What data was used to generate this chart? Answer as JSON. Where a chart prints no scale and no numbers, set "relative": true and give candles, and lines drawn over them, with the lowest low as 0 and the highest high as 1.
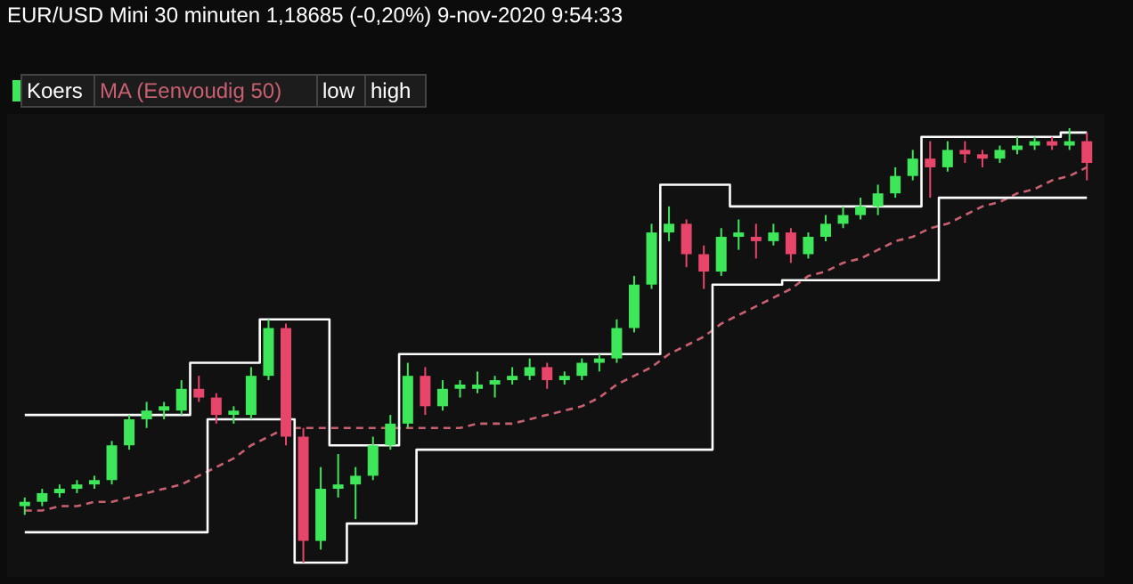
{
  "chart_data": {
    "type": "candlestick",
    "title": "EUR/USD Mini   30 minuten   1,18685 (-0,20%)   9-nov-2020 9:54:33",
    "relative": true,
    "legend": "top left",
    "categories": [
      null,
      null,
      null,
      null,
      null,
      null,
      null,
      null,
      null,
      null,
      null,
      null,
      null,
      null,
      null,
      null,
      null,
      null,
      null,
      null,
      null,
      null,
      null,
      null,
      null,
      null,
      null,
      null,
      null,
      null,
      null,
      null,
      null,
      null,
      null,
      null,
      null,
      null,
      null,
      null,
      null,
      null,
      null,
      null,
      null,
      null,
      null,
      null,
      null,
      null,
      null,
      null,
      null,
      null,
      null,
      null,
      null,
      null,
      null,
      null,
      null,
      null
    ],
    "series": [
      {
        "name": "Koers",
        "color": "#ffffff",
        "ohlc": [
          [
            0.13,
            0.15,
            0.11,
            0.14
          ],
          [
            0.14,
            0.17,
            0.13,
            0.16
          ],
          [
            0.16,
            0.18,
            0.15,
            0.17
          ],
          [
            0.17,
            0.19,
            0.16,
            0.18
          ],
          [
            0.18,
            0.2,
            0.17,
            0.19
          ],
          [
            0.19,
            0.28,
            0.18,
            0.27
          ],
          [
            0.27,
            0.34,
            0.26,
            0.33
          ],
          [
            0.33,
            0.37,
            0.31,
            0.35
          ],
          [
            0.35,
            0.37,
            0.33,
            0.36
          ],
          [
            0.35,
            0.42,
            0.34,
            0.4
          ],
          [
            0.4,
            0.43,
            0.37,
            0.38
          ],
          [
            0.38,
            0.39,
            0.32,
            0.34
          ],
          [
            0.34,
            0.36,
            0.32,
            0.35
          ],
          [
            0.34,
            0.45,
            0.33,
            0.43
          ],
          [
            0.43,
            0.56,
            0.42,
            0.54
          ],
          [
            0.54,
            0.55,
            0.27,
            0.29
          ],
          [
            0.29,
            0.31,
            0,
            0.05
          ],
          [
            0.05,
            0.22,
            0.03,
            0.17
          ],
          [
            0.17,
            0.25,
            0.15,
            0.18
          ],
          [
            0.18,
            0.22,
            0.1,
            0.2
          ],
          [
            0.2,
            0.29,
            0.19,
            0.27
          ],
          [
            0.27,
            0.34,
            0.26,
            0.32
          ],
          [
            0.32,
            0.46,
            0.31,
            0.43
          ],
          [
            0.43,
            0.45,
            0.34,
            0.36
          ],
          [
            0.36,
            0.42,
            0.35,
            0.4
          ],
          [
            0.4,
            0.42,
            0.38,
            0.41
          ],
          [
            0.4,
            0.44,
            0.39,
            0.41
          ],
          [
            0.41,
            0.43,
            0.38,
            0.42
          ],
          [
            0.42,
            0.45,
            0.41,
            0.43
          ],
          [
            0.43,
            0.47,
            0.42,
            0.45
          ],
          [
            0.45,
            0.46,
            0.4,
            0.42
          ],
          [
            0.42,
            0.44,
            0.41,
            0.43
          ],
          [
            0.43,
            0.47,
            0.42,
            0.46
          ],
          [
            0.46,
            0.48,
            0.44,
            0.47
          ],
          [
            0.47,
            0.56,
            0.46,
            0.54
          ],
          [
            0.54,
            0.66,
            0.53,
            0.64
          ],
          [
            0.64,
            0.78,
            0.63,
            0.76
          ],
          [
            0.76,
            0.82,
            0.74,
            0.78
          ],
          [
            0.78,
            0.79,
            0.68,
            0.71
          ],
          [
            0.71,
            0.73,
            0.63,
            0.67
          ],
          [
            0.67,
            0.77,
            0.66,
            0.75
          ],
          [
            0.75,
            0.79,
            0.72,
            0.76
          ],
          [
            0.75,
            0.78,
            0.7,
            0.74
          ],
          [
            0.74,
            0.78,
            0.73,
            0.76
          ],
          [
            0.76,
            0.77,
            0.69,
            0.71
          ],
          [
            0.71,
            0.76,
            0.7,
            0.75
          ],
          [
            0.75,
            0.8,
            0.74,
            0.78
          ],
          [
            0.78,
            0.82,
            0.77,
            0.8
          ],
          [
            0.8,
            0.84,
            0.79,
            0.82
          ],
          [
            0.82,
            0.87,
            0.8,
            0.85
          ],
          [
            0.85,
            0.91,
            0.84,
            0.89
          ],
          [
            0.89,
            0.95,
            0.88,
            0.93
          ],
          [
            0.93,
            0.97,
            0.84,
            0.91
          ],
          [
            0.91,
            0.97,
            0.9,
            0.95
          ],
          [
            0.95,
            0.97,
            0.92,
            0.94
          ],
          [
            0.94,
            0.95,
            0.91,
            0.93
          ],
          [
            0.93,
            0.96,
            0.92,
            0.95
          ],
          [
            0.95,
            0.98,
            0.94,
            0.96
          ],
          [
            0.96,
            0.98,
            0.95,
            0.97
          ],
          [
            0.97,
            0.98,
            0.95,
            0.96
          ],
          [
            0.96,
            1.0,
            0.95,
            0.97
          ],
          [
            0.97,
            0.99,
            0.88,
            0.92
          ]
        ],
        "colors": [
          "#3ee65a",
          "#3ee65a",
          "#3ee65a",
          "#3ee65a",
          "#3ee65a",
          "#3ee65a",
          "#3ee65a",
          "#3ee65a",
          "#3ee65a",
          "#3ee65a",
          "#e8456a",
          "#e8456a",
          "#3ee65a",
          "#3ee65a",
          "#3ee65a",
          "#e8456a",
          "#e8456a",
          "#3ee65a",
          "#3ee65a",
          "#3ee65a",
          "#3ee65a",
          "#3ee65a",
          "#3ee65a",
          "#e8456a",
          "#3ee65a",
          "#3ee65a",
          "#3ee65a",
          "#3ee65a",
          "#3ee65a",
          "#3ee65a",
          "#e8456a",
          "#3ee65a",
          "#3ee65a",
          "#3ee65a",
          "#3ee65a",
          "#3ee65a",
          "#3ee65a",
          "#3ee65a",
          "#e8456a",
          "#e8456a",
          "#3ee65a",
          "#3ee65a",
          "#e8456a",
          "#3ee65a",
          "#e8456a",
          "#3ee65a",
          "#3ee65a",
          "#3ee65a",
          "#3ee65a",
          "#3ee65a",
          "#3ee65a",
          "#3ee65a",
          "#e8456a",
          "#3ee65a",
          "#e8456a",
          "#e8456a",
          "#3ee65a",
          "#3ee65a",
          "#3ee65a",
          "#e8456a",
          "#3ee65a",
          "#e8456a"
        ]
      },
      {
        "name": "MA (Eenvoudig 50)",
        "type": "line",
        "line_style": "dashed",
        "color": "#c86070",
        "values": [
          0.12,
          0.12,
          0.13,
          0.13,
          0.14,
          0.14,
          0.15,
          0.16,
          0.17,
          0.18,
          0.2,
          0.22,
          0.24,
          0.27,
          0.29,
          0.31,
          0.31,
          0.31,
          0.31,
          0.31,
          0.31,
          0.31,
          0.31,
          0.31,
          0.31,
          0.31,
          0.32,
          0.32,
          0.32,
          0.33,
          0.34,
          0.35,
          0.36,
          0.38,
          0.41,
          0.43,
          0.45,
          0.48,
          0.5,
          0.52,
          0.55,
          0.57,
          0.59,
          0.61,
          0.63,
          0.66,
          0.67,
          0.69,
          0.7,
          0.72,
          0.74,
          0.75,
          0.77,
          0.78,
          0.8,
          0.82,
          0.83,
          0.85,
          0.86,
          0.88,
          0.89,
          0.91
        ]
      },
      {
        "name": "low",
        "type": "step",
        "line_style": "solid",
        "color": "#ffffff",
        "values": [
          0.07,
          0.07,
          0.07,
          0.07,
          0.07,
          0.07,
          0.07,
          0.07,
          0.07,
          0.07,
          0.07,
          0.33,
          0.33,
          0.33,
          0.33,
          0.33,
          0,
          0,
          0,
          0.09,
          0.09,
          0.09,
          0.09,
          0.26,
          0.26,
          0.26,
          0.26,
          0.26,
          0.26,
          0.26,
          0.26,
          0.26,
          0.26,
          0.26,
          0.26,
          0.26,
          0.26,
          0.26,
          0.26,
          0.26,
          0.64,
          0.64,
          0.64,
          0.64,
          0.65,
          0.65,
          0.65,
          0.65,
          0.65,
          0.65,
          0.65,
          0.65,
          0.65,
          0.84,
          0.84,
          0.84,
          0.84,
          0.84,
          0.84,
          0.84,
          0.84,
          0.84
        ]
      },
      {
        "name": "high",
        "type": "step",
        "line_style": "solid",
        "color": "#ffffff",
        "values": [
          0.34,
          0.34,
          0.34,
          0.34,
          0.34,
          0.34,
          0.34,
          0.34,
          0.34,
          0.34,
          0.46,
          0.46,
          0.46,
          0.46,
          0.56,
          0.56,
          0.56,
          0.56,
          0.27,
          0.27,
          0.27,
          0.27,
          0.48,
          0.48,
          0.48,
          0.48,
          0.48,
          0.48,
          0.48,
          0.48,
          0.48,
          0.48,
          0.48,
          0.48,
          0.48,
          0.48,
          0.48,
          0.87,
          0.87,
          0.87,
          0.87,
          0.82,
          0.82,
          0.82,
          0.82,
          0.82,
          0.82,
          0.82,
          0.82,
          0.82,
          0.82,
          0.82,
          0.98,
          0.98,
          0.98,
          0.98,
          0.98,
          0.98,
          0.98,
          0.98,
          0.99,
          0.99
        ]
      }
    ]
  }
}
